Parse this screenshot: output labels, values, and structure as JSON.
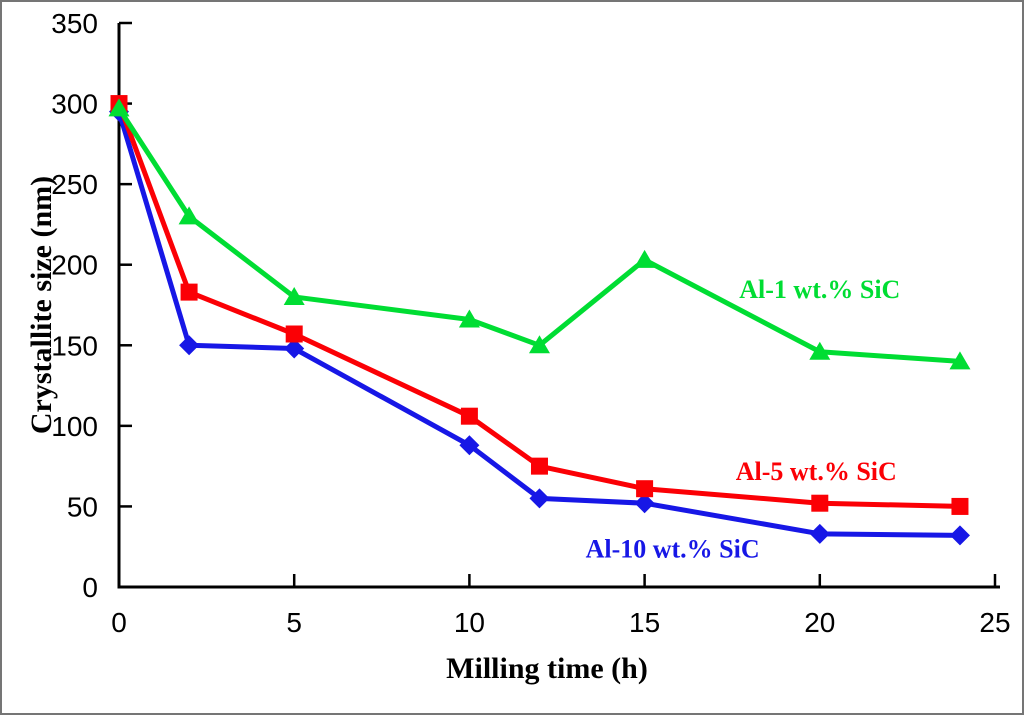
{
  "frame": {
    "background": "#ffffff",
    "border_color": "#757575"
  },
  "chart_data": {
    "type": "line",
    "title": "",
    "xlabel": "Milling time (h)",
    "ylabel": "Crystallite size (nm)",
    "x": [
      0,
      2,
      5,
      10,
      12,
      15,
      20,
      24
    ],
    "xlim": [
      0,
      25
    ],
    "ylim": [
      0,
      350
    ],
    "xticks": [
      0,
      5,
      10,
      15,
      20,
      25
    ],
    "yticks": [
      0,
      50,
      100,
      150,
      200,
      250,
      300,
      350
    ],
    "grid": false,
    "legend_position": "inline-annotations",
    "axis_color": "#000000",
    "tick_label_color": "#000000",
    "series": [
      {
        "name": "Al-1 wt.% SiC",
        "color": "#00dd33",
        "marker": "triangle",
        "values": [
          297,
          230,
          180,
          166,
          150,
          203,
          146,
          140
        ],
        "label_x": 20.0,
        "label_y": 185
      },
      {
        "name": "Al-5 wt.% SiC",
        "color": "#fb0005",
        "marker": "square",
        "values": [
          300,
          183,
          157,
          106,
          75,
          61,
          52,
          50
        ],
        "label_x": 19.9,
        "label_y": 72
      },
      {
        "name": "Al-10 wt.% SiC",
        "color": "#1717e6",
        "marker": "diamond",
        "values": [
          295,
          150,
          148,
          88,
          55,
          52,
          33,
          32
        ],
        "label_x": 15.8,
        "label_y": 24
      }
    ]
  }
}
